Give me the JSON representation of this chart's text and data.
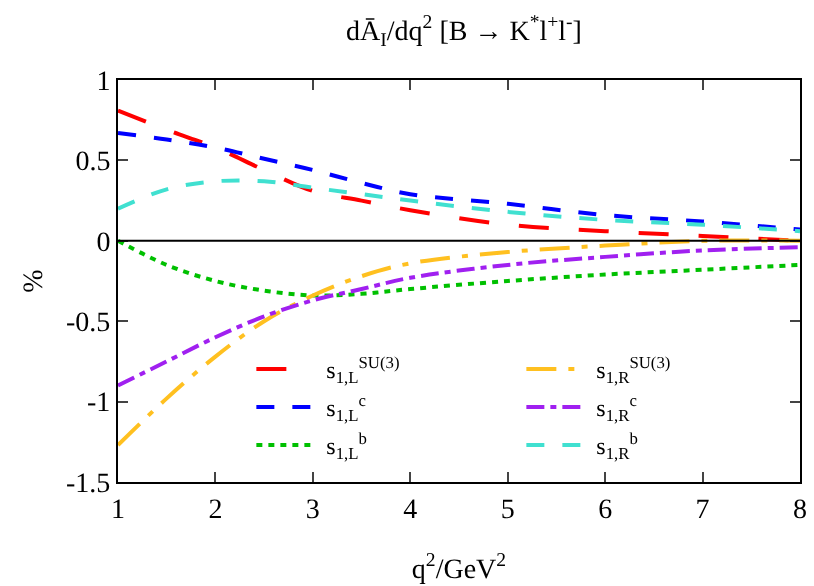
{
  "chart_data": {
    "type": "line",
    "title": "dĀ$_{I}$/dq$^{2}$ [B → K$^{*}$l$^{+}$l$^{-}$]",
    "xlabel": "q$^{2}$/GeV$^{2}$",
    "ylabel": "%",
    "x": [
      1,
      1.5,
      2,
      2.5,
      3,
      3.5,
      4,
      5,
      6,
      7,
      8
    ],
    "series": [
      {
        "name": "s$_{1,L}$$^{SU(3)}$",
        "color": "#ff0000",
        "line_style": "longdash",
        "values": [
          0.81,
          0.69,
          0.58,
          0.44,
          0.31,
          0.25,
          0.19,
          0.1,
          0.06,
          0.03,
          0.0
        ]
      },
      {
        "name": "s$_{1,L}$$^{c}$",
        "color": "#0000ff",
        "line_style": "dashed",
        "values": [
          0.67,
          0.63,
          0.58,
          0.51,
          0.44,
          0.36,
          0.29,
          0.23,
          0.16,
          0.12,
          0.07
        ]
      },
      {
        "name": "s$_{1,L}$$^{b}$",
        "color": "#00c000",
        "line_style": "dotted",
        "values": [
          0,
          -0.15,
          -0.25,
          -0.31,
          -0.34,
          -0.33,
          -0.3,
          -0.25,
          -0.21,
          -0.18,
          -0.15
        ]
      },
      {
        "name": "s$_{1,R}$$^{SU(3)}$",
        "color": "#ffc020",
        "line_style": "longdashdot",
        "values": [
          -1.27,
          -0.98,
          -0.72,
          -0.5,
          -0.34,
          -0.22,
          -0.14,
          -0.07,
          -0.03,
          0.0,
          0.0
        ]
      },
      {
        "name": "s$_{1,R}$$^{c}$",
        "color": "#a020f0",
        "line_style": "dashdot",
        "values": [
          -0.9,
          -0.75,
          -0.6,
          -0.47,
          -0.37,
          -0.3,
          -0.23,
          -0.15,
          -0.1,
          -0.06,
          -0.04
        ]
      },
      {
        "name": "s$_{1,R}$$^{b}$",
        "color": "#40e0d0",
        "line_style": "dashed",
        "values": [
          0.2,
          0.32,
          0.37,
          0.37,
          0.33,
          0.29,
          0.25,
          0.18,
          0.13,
          0.1,
          0.06
        ]
      }
    ],
    "xlim": [
      1,
      8
    ],
    "xticks": [
      1,
      2,
      3,
      4,
      5,
      6,
      7,
      8
    ],
    "ylim": [
      -1.5,
      1
    ],
    "yticks": [
      -1.5,
      -1,
      -0.5,
      0,
      0.5,
      1
    ],
    "ref_lines": [
      {
        "axis": "y",
        "value": 0,
        "color": "#000000"
      }
    ],
    "grid": false,
    "legend": "bottom right",
    "marker": "none"
  }
}
